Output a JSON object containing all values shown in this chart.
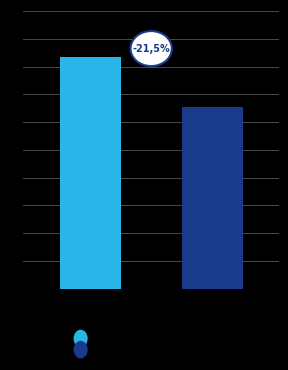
{
  "bar_values": [
    100,
    78.5
  ],
  "bar_colors": [
    "#29B5E8",
    "#1A3A8C"
  ],
  "background_color": "#000000",
  "plot_bg_color": "#000000",
  "grid_color": "#555555",
  "annotation_text": "-21,5%",
  "annotation_circle_facecolor": "#FFFFFF",
  "annotation_text_color": "#1A3A8C",
  "annotation_border_color": "#1A3A8C",
  "legend_colors": [
    "#29B5E8",
    "#1A3A8C"
  ],
  "ylim_max": 120,
  "bar_width": 0.5,
  "bar_positions": [
    0,
    1
  ],
  "xlim": [
    -0.55,
    1.55
  ],
  "n_gridlines": 10
}
